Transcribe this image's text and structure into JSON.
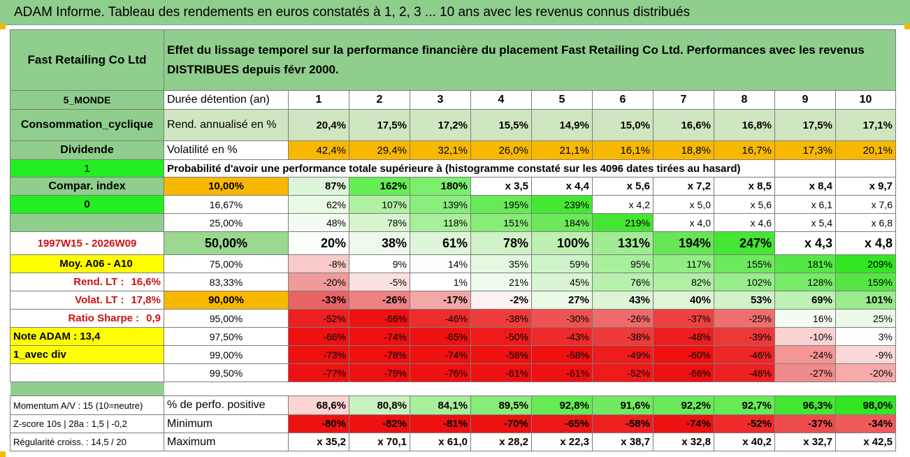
{
  "title": "ADAM Informe. Tableau des rendements en euros constatés à 1, 2, 3 ... 10 ans avec les revenus connus distribués",
  "company": "Fast Retailing Co Ltd",
  "description_line1": "Effet du lissage temporel sur la performance financière du placement Fast Retailing Co Ltd. Performances avec les revenus",
  "description_line2": "DISTRIBUES depuis févr 2000.",
  "left": {
    "region": "5_MONDE",
    "sector": "Consommation_cyclique",
    "dividend_label": "Dividende",
    "dividend_value": "1",
    "compar_label": "Compar. index",
    "compar_value": "0",
    "period": "1997W15 - 2026W09",
    "moy": "Moy. A06 - A10",
    "rend_lt_label": "Rend. LT :",
    "rend_lt_value": "16,6%",
    "volat_lt_label": "Volat. LT :",
    "volat_lt_value": "17,8%",
    "sharpe_label": "Ratio Sharpe :",
    "sharpe_value": "0,9",
    "note": "Note ADAM : 13,4",
    "div_mode": "1_avec div",
    "momentum": "Momentum A/V : 15 (10=neutre)",
    "zscore": "Z-score 10s | 28a : 1,5 | -0,2",
    "regularite": "Régularité croiss. : 14,5 / 20"
  },
  "header_label": "Durée détention (an)",
  "years": [
    "1",
    "2",
    "3",
    "4",
    "5",
    "6",
    "7",
    "8",
    "9",
    "10"
  ],
  "rend_label": "Rend. annualisé en %",
  "rend": [
    "20,4%",
    "17,5%",
    "17,2%",
    "15,5%",
    "14,9%",
    "15,0%",
    "16,6%",
    "16,8%",
    "17,5%",
    "17,1%"
  ],
  "vol_label": "Volatilité en %",
  "vol": [
    "42,4%",
    "29,4%",
    "32,1%",
    "26,0%",
    "21,1%",
    "16,1%",
    "18,8%",
    "16,7%",
    "17,3%",
    "20,1%"
  ],
  "prob_text": "Probabilité d'avoir une performance totale supérieure à (histogramme constaté sur les 4096 dates tirées au hasard)",
  "pct_rows": [
    {
      "label": "10,00%",
      "values": [
        "87%",
        "162%",
        "180%",
        "x 3,5",
        "x 4,4",
        "x 5,6",
        "x 7,2",
        "x 8,5",
        "x 8,4",
        "x 9,7"
      ],
      "colors": [
        "#ddf5d8",
        "#66ee55",
        "#7cee6e",
        "#fff",
        "#fff",
        "#fff",
        "#fff",
        "#fff",
        "#fff",
        "#fff"
      ]
    },
    {
      "label": "16,67%",
      "values": [
        "62%",
        "107%",
        "139%",
        "195%",
        "239%",
        "x 4,2",
        "x 5,0",
        "x 5,6",
        "x 6,1",
        "x 7,6"
      ],
      "colors": [
        "#eaf8e6",
        "#b0f0a4",
        "#8aee7c",
        "#66ea55",
        "#44e833",
        "#fff",
        "#fff",
        "#fff",
        "#fff",
        "#fff"
      ]
    },
    {
      "label": "25,00%",
      "values": [
        "48%",
        "78%",
        "118%",
        "151%",
        "184%",
        "219%",
        "x 4,0",
        "x 4,6",
        "x 5,4",
        "x 6,8"
      ],
      "colors": [
        "#f4fbf2",
        "#d6f5cf",
        "#a8ef9b",
        "#88ec78",
        "#6be95a",
        "#44e533",
        "#fff",
        "#fff",
        "#fff",
        "#fff"
      ]
    },
    {
      "label": "50,00%",
      "values": [
        "20%",
        "38%",
        "61%",
        "78%",
        "100%",
        "131%",
        "194%",
        "247%",
        "x 4,3",
        "x 4,8"
      ],
      "colors": [
        "#fbfefa",
        "#eef9ec",
        "#dff5da",
        "#d0f2c8",
        "#bdefb3",
        "#a0eb93",
        "#66e655",
        "#44e633",
        "#fff",
        "#fff"
      ]
    },
    {
      "label": "75,00%",
      "values": [
        "-8%",
        "9%",
        "14%",
        "35%",
        "59%",
        "95%",
        "117%",
        "155%",
        "181%",
        "209%"
      ],
      "colors": [
        "#f8caca",
        "#fff",
        "#fbfefb",
        "#e6f8e2",
        "#cff3c8",
        "#a8ef9b",
        "#93ed85",
        "#6ce95c",
        "#55e844",
        "#33e622"
      ]
    },
    {
      "label": "83,33%",
      "values": [
        "-20%",
        "-5%",
        "1%",
        "21%",
        "45%",
        "76%",
        "82%",
        "102%",
        "128%",
        "159%"
      ],
      "colors": [
        "#f09a9a",
        "#fbe0e0",
        "#fff",
        "#eff9ed",
        "#d9f5d3",
        "#b8f0ad",
        "#b0efa4",
        "#99ec8b",
        "#77ea67",
        "#55e644"
      ]
    },
    {
      "label": "90,00%",
      "values": [
        "-33%",
        "-26%",
        "-17%",
        "-2%",
        "27%",
        "43%",
        "40%",
        "53%",
        "69%",
        "101%"
      ],
      "colors": [
        "#e86464",
        "#ee8282",
        "#f3a6a6",
        "#fdf2f2",
        "#eaf8e6",
        "#dcf5d5",
        "#dff6d8",
        "#d1f2c9",
        "#bff0b5",
        "#99ec8b"
      ]
    },
    {
      "label": "95,00%",
      "values": [
        "-52%",
        "-66%",
        "-46%",
        "-38%",
        "-30%",
        "-26%",
        "-37%",
        "-25%",
        "16%",
        "25%"
      ],
      "colors": [
        "#ee2020",
        "#ee1111",
        "#ee2c2c",
        "#ee3c3c",
        "#ee5252",
        "#ef6a6a",
        "#ee4040",
        "#ef6e6e",
        "#f4fbf2",
        "#ecf8e8"
      ]
    },
    {
      "label": "97,50%",
      "values": [
        "-66%",
        "-74%",
        "-65%",
        "-50%",
        "-43%",
        "-38%",
        "-48%",
        "-39%",
        "-10%",
        "3%"
      ],
      "colors": [
        "#ee1111",
        "#ee1111",
        "#ee1111",
        "#ee1a1a",
        "#ee2a2a",
        "#ee3a3a",
        "#ee1e1e",
        "#ee3838",
        "#fbd2d2",
        "#fff"
      ]
    },
    {
      "label": "99,00%",
      "values": [
        "-73%",
        "-78%",
        "-74%",
        "-58%",
        "-58%",
        "-49%",
        "-60%",
        "-46%",
        "-24%",
        "-9%"
      ],
      "colors": [
        "#ee1111",
        "#ee1111",
        "#ee1111",
        "#ee1111",
        "#ee1111",
        "#ee1c1c",
        "#ee1111",
        "#ee2626",
        "#f49696",
        "#fbd8d8"
      ]
    },
    {
      "label": "99,50%",
      "values": [
        "-77%",
        "-79%",
        "-76%",
        "-61%",
        "-61%",
        "-52%",
        "-66%",
        "-48%",
        "-27%",
        "-20%"
      ],
      "colors": [
        "#ee1111",
        "#ee1111",
        "#ee1111",
        "#ee1111",
        "#ee1111",
        "#ee1a1a",
        "#ee1111",
        "#ee2222",
        "#f18a8a",
        "#f6aaaa"
      ]
    }
  ],
  "pos_label": "% de perfo. positive",
  "pos": [
    "68,6%",
    "80,8%",
    "84,1%",
    "89,5%",
    "92,8%",
    "91,6%",
    "92,2%",
    "92,7%",
    "96,3%",
    "98,0%"
  ],
  "pos_colors": [
    "#fbd4d4",
    "#c9f2c0",
    "#a8ef9b",
    "#88ec78",
    "#66ea55",
    "#70ea60",
    "#6aea5a",
    "#66ea55",
    "#44e833",
    "#33e622"
  ],
  "min_label": "Minimum",
  "min": [
    "-80%",
    "-82%",
    "-81%",
    "-70%",
    "-65%",
    "-58%",
    "-74%",
    "-52%",
    "-37%",
    "-34%"
  ],
  "min_colors": [
    "#ee1111",
    "#ee1111",
    "#ee1111",
    "#ee1111",
    "#ee1616",
    "#ee2020",
    "#ee1111",
    "#ee2a2a",
    "#ee4c4c",
    "#ef5a5a"
  ],
  "max_label": "Maximum",
  "max": [
    "x 35,2",
    "x 70,1",
    "x 61,0",
    "x 28,2",
    "x 22,3",
    "x 38,7",
    "x 32,8",
    "x 40,2",
    "x 32,7",
    "x 42,5"
  ]
}
